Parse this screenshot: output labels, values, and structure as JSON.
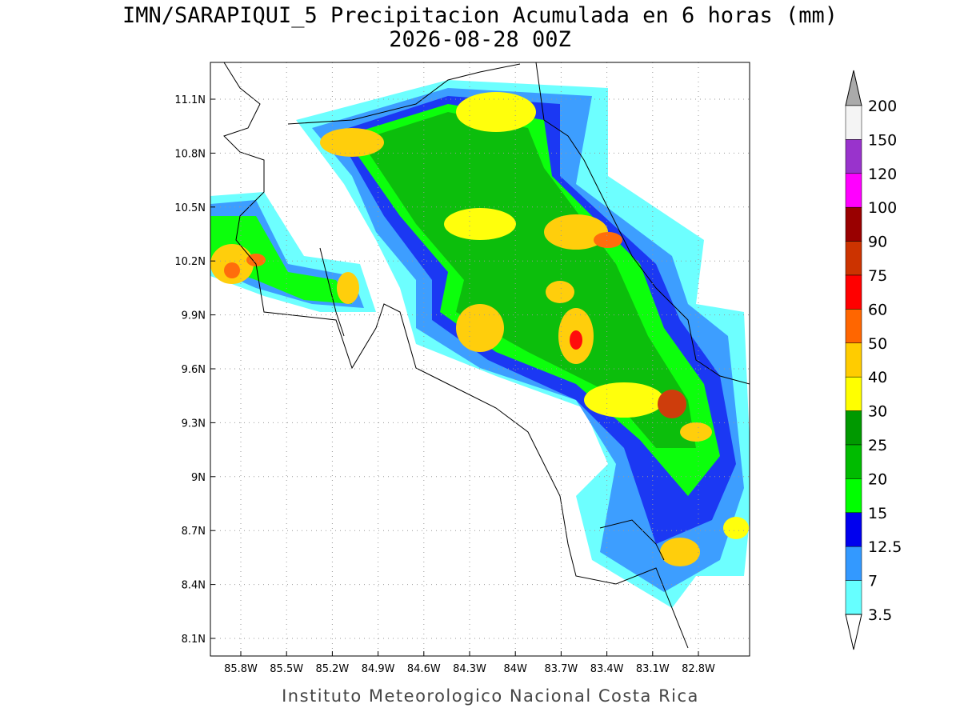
{
  "header": {
    "title": "IMN/SARAPIQUI_5 Precipitacion Acumulada en 6 horas (mm)",
    "subtitle": "2026-08-28 00Z"
  },
  "map": {
    "lat_ticks": [
      "11.1N",
      "10.8N",
      "10.5N",
      "10.2N",
      "9.9N",
      "9.6N",
      "9.3N",
      "9N",
      "8.7N",
      "8.4N",
      "8.1N"
    ],
    "lon_ticks": [
      "85.8W",
      "85.5W",
      "85.2W",
      "84.9W",
      "84.6W",
      "84.3W",
      "84W",
      "83.7W",
      "83.4W",
      "83.1W",
      "82.8W"
    ]
  },
  "colorbar": {
    "levels": [
      200,
      150,
      120,
      100,
      90,
      75,
      60,
      50,
      40,
      30,
      25,
      20,
      15,
      12.5,
      7,
      3.5
    ],
    "colors": [
      "#f4f4f4",
      "#9933cc",
      "#ff00ff",
      "#990000",
      "#cc3300",
      "#ff0000",
      "#ff6600",
      "#ffcc00",
      "#ffff00",
      "#009900",
      "#00bb00",
      "#00ff00",
      "#0000ee",
      "#3399ff",
      "#66ffff"
    ],
    "over_color": "#aaaaaa",
    "under_color": "#ffffff"
  },
  "footer": "Instituto Meteorologico Nacional Costa Rica"
}
